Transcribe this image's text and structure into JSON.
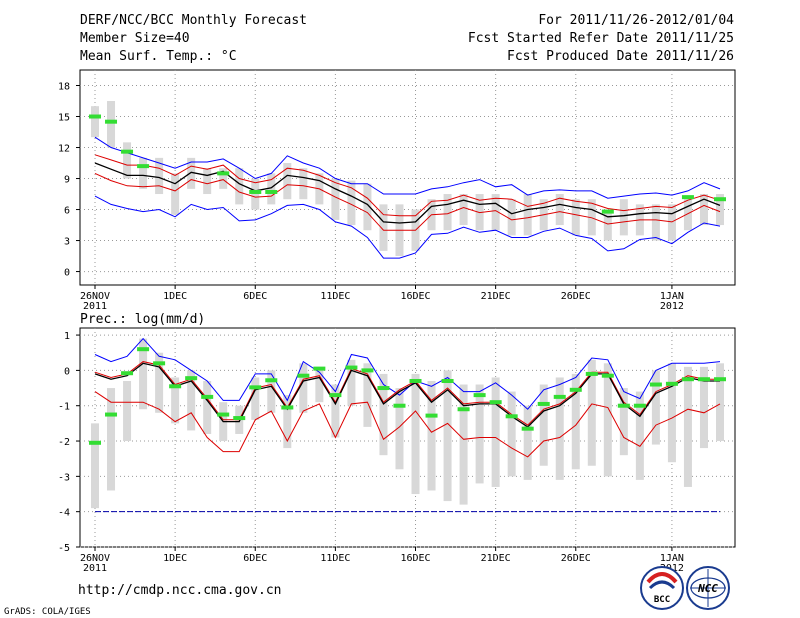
{
  "header": {
    "title": "DERF/NCC/BCC Monthly Forecast",
    "member_size": "Member Size=40",
    "variable": "Mean Surf. Temp.: °C",
    "period": "For 2011/11/26-2012/01/04",
    "fcst_started": "Fcst Started Refer Date 2011/11/25",
    "fcst_produced": "Fcst Produced Date 2011/11/26"
  },
  "footer": {
    "url": "http://cmdp.ncc.cma.gov.cn",
    "grads": "GrADS: COLA/IGES",
    "logo_text": "BCC",
    "logo2_text": "NCC"
  },
  "colors": {
    "max": "#0000ff",
    "min_spread": "#dd0000",
    "mean": "#000000",
    "box": "#d8d8d8",
    "obs": "#33dd33",
    "ref": "#0000aa"
  },
  "chart_data": [
    {
      "type": "line",
      "title": "Mean Surf. Temp.: °C",
      "xlabel": "",
      "ylabel": "",
      "ylim": [
        -1.3,
        19.5
      ],
      "yticks": [
        0,
        3,
        6,
        9,
        12,
        15,
        18
      ],
      "ytick_labels": [
        "0",
        "3",
        "6",
        "9",
        "12",
        "15",
        "18"
      ],
      "x_day_range": [
        0,
        39
      ],
      "xticks": [
        {
          "day": 0,
          "label": "26NOV",
          "sublabel": "2011"
        },
        {
          "day": 5,
          "label": "1DEC"
        },
        {
          "day": 10,
          "label": "6DEC"
        },
        {
          "day": 15,
          "label": "11DEC"
        },
        {
          "day": 20,
          "label": "16DEC"
        },
        {
          "day": 25,
          "label": "21DEC"
        },
        {
          "day": 30,
          "label": "26DEC"
        },
        {
          "day": 36,
          "label": "1JAN",
          "sublabel": "2012"
        }
      ],
      "series": [
        {
          "name": "max",
          "values": [
            13.0,
            12.0,
            11.5,
            11.0,
            10.5,
            10.0,
            10.6,
            10.6,
            10.9,
            10.0,
            9.0,
            9.5,
            11.2,
            10.5,
            10.0,
            9.0,
            8.5,
            8.5,
            7.5,
            7.5,
            7.5,
            8.0,
            8.2,
            8.6,
            8.9,
            8.2,
            8.4,
            7.4,
            7.8,
            7.9,
            7.8,
            7.8,
            7.1,
            7.3,
            7.5,
            7.6,
            7.4,
            7.8,
            8.6,
            8.0
          ]
        },
        {
          "name": "upper",
          "values": [
            11.3,
            10.8,
            10.3,
            10.3,
            10.0,
            9.3,
            10.2,
            9.9,
            10.3,
            9.0,
            8.6,
            8.9,
            10.0,
            9.8,
            9.3,
            8.6,
            8.1,
            7.1,
            5.5,
            5.4,
            5.4,
            6.8,
            6.9,
            7.4,
            6.9,
            7.1,
            7.0,
            6.3,
            6.6,
            7.1,
            6.8,
            6.6,
            6.1,
            5.9,
            6.1,
            6.3,
            6.2,
            6.9,
            7.4,
            6.9
          ]
        },
        {
          "name": "mean",
          "values": [
            10.5,
            9.9,
            9.3,
            9.3,
            9.1,
            8.5,
            9.6,
            9.3,
            9.7,
            8.5,
            7.8,
            8.1,
            9.3,
            9.1,
            8.8,
            8.0,
            7.3,
            6.5,
            4.8,
            4.7,
            4.8,
            6.3,
            6.5,
            6.9,
            6.5,
            6.6,
            5.6,
            6.0,
            6.2,
            6.5,
            6.2,
            6.0,
            5.3,
            5.4,
            5.6,
            5.7,
            5.6,
            6.3,
            7.0,
            6.4
          ]
        },
        {
          "name": "lower",
          "values": [
            9.5,
            8.8,
            8.3,
            8.2,
            8.3,
            7.8,
            8.9,
            8.5,
            8.9,
            7.7,
            7.2,
            7.3,
            8.4,
            8.3,
            8.0,
            7.2,
            6.5,
            5.7,
            4.0,
            4.0,
            4.0,
            5.5,
            5.6,
            6.2,
            5.7,
            5.9,
            5.0,
            5.2,
            5.5,
            5.8,
            5.5,
            5.2,
            4.6,
            4.8,
            5.0,
            5.0,
            4.8,
            5.6,
            6.4,
            5.8
          ]
        },
        {
          "name": "min",
          "values": [
            7.3,
            6.5,
            6.1,
            5.8,
            6.0,
            5.3,
            6.5,
            6.0,
            6.2,
            4.9,
            5.0,
            5.6,
            6.4,
            6.5,
            6.0,
            4.8,
            4.4,
            3.3,
            1.3,
            1.3,
            1.8,
            3.6,
            3.7,
            4.3,
            3.8,
            4.0,
            3.3,
            3.3,
            3.9,
            4.2,
            3.5,
            3.2,
            2.0,
            2.2,
            3.1,
            3.3,
            2.7,
            3.8,
            4.7,
            4.4
          ]
        },
        {
          "name": "box_high",
          "values": [
            16.0,
            16.5,
            12.5,
            11.0,
            11.0,
            9.5,
            11.0,
            10.0,
            10.0,
            10.0,
            9.0,
            9.5,
            10.5,
            10.0,
            9.5,
            9.0,
            8.8,
            8.5,
            6.5,
            6.5,
            6.0,
            7.0,
            7.5,
            7.5,
            7.5,
            7.5,
            7.0,
            7.5,
            7.0,
            7.5,
            7.0,
            7.0,
            6.0,
            7.0,
            6.5,
            6.5,
            6.5,
            7.0,
            7.5,
            7.5
          ]
        },
        {
          "name": "box_low",
          "values": [
            13.0,
            12.0,
            9.0,
            8.0,
            7.5,
            5.5,
            8.0,
            7.5,
            8.0,
            6.5,
            6.0,
            6.5,
            7.0,
            7.0,
            6.5,
            5.0,
            4.5,
            4.0,
            2.0,
            1.5,
            2.0,
            4.0,
            4.0,
            4.5,
            4.0,
            4.0,
            3.5,
            3.5,
            4.0,
            4.5,
            3.5,
            3.5,
            3.0,
            3.5,
            3.5,
            3.0,
            3.0,
            4.0,
            4.5,
            4.5
          ]
        },
        {
          "name": "observed",
          "values": [
            15.0,
            14.5,
            11.6,
            10.2,
            null,
            null,
            null,
            null,
            9.5,
            null,
            7.7,
            7.7,
            null,
            null,
            null,
            null,
            null,
            null,
            null,
            null,
            null,
            null,
            null,
            null,
            null,
            null,
            null,
            null,
            null,
            null,
            null,
            null,
            5.8,
            null,
            null,
            null,
            null,
            7.2,
            null,
            7.0
          ]
        }
      ]
    },
    {
      "type": "line",
      "title": "Prec.: log(mm/d)",
      "xlabel": "",
      "ylabel": "",
      "ylim": [
        -5,
        1.2
      ],
      "yticks": [
        -5,
        -4,
        -3,
        -2,
        -1,
        0,
        1
      ],
      "ytick_labels": [
        "-5",
        "-4",
        "-3",
        "-2",
        "-1",
        "0",
        "1"
      ],
      "x_day_range": [
        0,
        39
      ],
      "xticks": [
        {
          "day": 0,
          "label": "26NOV",
          "sublabel": "2011"
        },
        {
          "day": 5,
          "label": "1DEC"
        },
        {
          "day": 10,
          "label": "6DEC"
        },
        {
          "day": 15,
          "label": "11DEC"
        },
        {
          "day": 20,
          "label": "16DEC"
        },
        {
          "day": 25,
          "label": "21DEC"
        },
        {
          "day": 30,
          "label": "26DEC"
        },
        {
          "day": 36,
          "label": "1JAN",
          "sublabel": "2012"
        }
      ],
      "reference_value": -4,
      "series": [
        {
          "name": "max",
          "values": [
            0.45,
            0.25,
            0.4,
            0.9,
            0.4,
            0.3,
            0.0,
            -0.3,
            -0.85,
            -0.85,
            -0.1,
            -0.1,
            -0.85,
            0.25,
            -0.05,
            -0.6,
            0.45,
            0.35,
            -0.4,
            -0.7,
            -0.3,
            -0.45,
            -0.2,
            -0.6,
            -0.6,
            -0.35,
            -0.7,
            -1.1,
            -0.55,
            -0.4,
            -0.2,
            0.35,
            0.3,
            -0.6,
            -0.8,
            0.0,
            0.2,
            0.2,
            0.2,
            0.25
          ]
        },
        {
          "name": "upper",
          "values": [
            -0.05,
            -0.2,
            -0.1,
            0.25,
            0.15,
            -0.4,
            -0.25,
            -0.8,
            -1.4,
            -1.4,
            -0.5,
            -0.4,
            -1.05,
            -0.25,
            -0.15,
            -0.9,
            0.05,
            -0.1,
            -0.9,
            -0.55,
            -0.3,
            -0.85,
            -0.5,
            -0.95,
            -0.9,
            -0.9,
            -1.25,
            -1.55,
            -1.1,
            -0.95,
            -0.6,
            -0.05,
            -0.05,
            -0.9,
            -1.25,
            -0.6,
            -0.4,
            -0.15,
            -0.25,
            -0.25
          ]
        },
        {
          "name": "mean",
          "values": [
            -0.1,
            -0.25,
            -0.15,
            0.2,
            0.1,
            -0.45,
            -0.3,
            -0.85,
            -1.45,
            -1.45,
            -0.55,
            -0.45,
            -1.1,
            -0.3,
            -0.2,
            -0.95,
            0.0,
            -0.15,
            -0.95,
            -0.6,
            -0.35,
            -0.9,
            -0.55,
            -1.0,
            -0.95,
            -0.95,
            -1.3,
            -1.6,
            -1.15,
            -1.0,
            -0.65,
            -0.1,
            -0.1,
            -0.95,
            -1.3,
            -0.65,
            -0.45,
            -0.2,
            -0.3,
            -0.3
          ]
        },
        {
          "name": "lower",
          "values": [
            -0.6,
            -0.9,
            -0.9,
            -0.9,
            -1.1,
            -1.45,
            -1.2,
            -1.9,
            -2.3,
            -2.3,
            -1.4,
            -1.15,
            -2.0,
            -1.15,
            -0.95,
            -1.9,
            -0.95,
            -0.9,
            -1.95,
            -1.6,
            -1.15,
            -1.75,
            -1.5,
            -1.95,
            -1.9,
            -1.9,
            -2.2,
            -2.45,
            -2.0,
            -1.9,
            -1.55,
            -0.95,
            -1.05,
            -1.9,
            -2.15,
            -1.55,
            -1.35,
            -1.1,
            -1.2,
            -0.95
          ]
        },
        {
          "name": "box_high",
          "values": [
            -1.5,
            -0.5,
            -0.3,
            0.9,
            0.5,
            -0.2,
            0.0,
            -0.3,
            -0.9,
            -1.0,
            -0.2,
            0.0,
            -0.7,
            0.2,
            0.1,
            -0.4,
            0.3,
            0.2,
            -0.1,
            -0.5,
            -0.1,
            -0.3,
            0.0,
            -0.4,
            -0.4,
            -0.2,
            -0.6,
            -1.0,
            -0.4,
            -0.2,
            -0.1,
            0.3,
            0.2,
            -0.5,
            -0.6,
            0.0,
            0.2,
            0.1,
            0.1,
            0.2
          ]
        },
        {
          "name": "box_low",
          "values": [
            -3.9,
            -3.4,
            -2.0,
            -1.1,
            -1.2,
            -1.5,
            -1.7,
            -1.8,
            -2.0,
            -1.8,
            -1.4,
            -1.2,
            -2.2,
            -1.2,
            -0.9,
            -1.9,
            -1.0,
            -1.6,
            -2.4,
            -2.8,
            -3.5,
            -3.4,
            -3.7,
            -3.8,
            -3.2,
            -3.3,
            -3.0,
            -3.1,
            -2.7,
            -3.1,
            -2.8,
            -2.7,
            -3.0,
            -2.4,
            -3.1,
            -2.1,
            -2.6,
            -3.3,
            -2.2,
            -2.0
          ]
        },
        {
          "name": "observed",
          "values": [
            -2.05,
            -1.25,
            -0.08,
            0.6,
            0.2,
            -0.45,
            -0.22,
            -0.75,
            -1.25,
            -1.35,
            -0.48,
            -0.28,
            -1.05,
            -0.15,
            0.05,
            -0.7,
            0.08,
            0.0,
            -0.5,
            -1.0,
            -0.3,
            -1.28,
            -0.3,
            -1.1,
            -0.7,
            -0.9,
            -1.3,
            -1.65,
            -0.95,
            -0.75,
            -0.55,
            -0.1,
            -0.15,
            -1.0,
            -1.0,
            -0.4,
            -0.38,
            -0.25,
            -0.25,
            -0.25
          ]
        }
      ]
    }
  ]
}
